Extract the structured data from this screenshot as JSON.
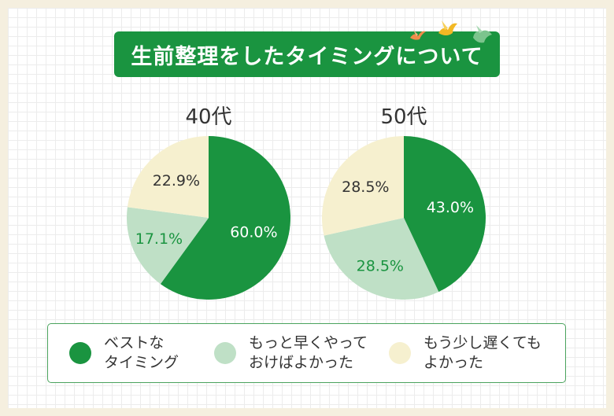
{
  "title": "生前整理をしたタイミングについて",
  "colors": {
    "best": "#1a9440",
    "earlier": "#bfe0c6",
    "later": "#f6f0cf",
    "banner": "#1a9440",
    "frame_background": "#f5efdf"
  },
  "decorations": [
    "bird-orange-icon",
    "bird-yellow-icon",
    "bird-green-icon"
  ],
  "legend": {
    "items": [
      {
        "line1": "ベストな",
        "line2": "タイミング",
        "color": "#1a9440"
      },
      {
        "line1": "もっと早くやって",
        "line2": "おけばよかった",
        "color": "#bfe0c6"
      },
      {
        "line1": "もう少し遅くても",
        "line2": "よかった",
        "color": "#f6f0cf"
      }
    ]
  },
  "chart_data": [
    {
      "type": "pie",
      "title": "40代",
      "series": [
        {
          "name": "ベストなタイミング",
          "value": 60.0,
          "label": "60.0%",
          "color": "#1a9440",
          "label_color": "#ffffff"
        },
        {
          "name": "もっと早くやっておけばよかった",
          "value": 17.1,
          "label": "17.1%",
          "color": "#bfe0c6",
          "label_color": "#1a9440"
        },
        {
          "name": "もう少し遅くてもよかった",
          "value": 22.9,
          "label": "22.9%",
          "color": "#f6f0cf",
          "label_color": "#333333"
        }
      ]
    },
    {
      "type": "pie",
      "title": "50代",
      "series": [
        {
          "name": "ベストなタイミング",
          "value": 43.0,
          "label": "43.0%",
          "color": "#1a9440",
          "label_color": "#ffffff"
        },
        {
          "name": "もっと早くやっておけばよかった",
          "value": 28.5,
          "label": "28.5%",
          "color": "#bfe0c6",
          "label_color": "#1a9440"
        },
        {
          "name": "もう少し遅くてもよかった",
          "value": 28.5,
          "label": "28.5%",
          "color": "#f6f0cf",
          "label_color": "#333333"
        }
      ]
    }
  ]
}
